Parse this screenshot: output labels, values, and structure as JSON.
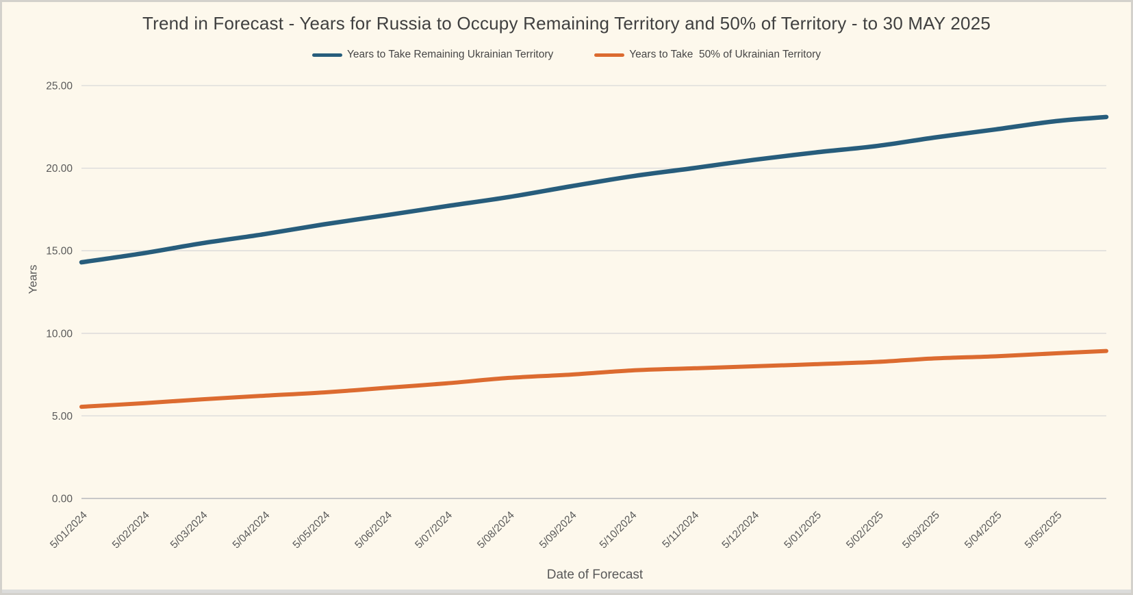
{
  "window": {
    "background_color": "#fdf8ec",
    "border_color": "#d3d1cc",
    "grid_color": "#d9d9d9",
    "axis_line_color": "#c8c8c8",
    "tick_text_color": "#595959",
    "title_text_color": "#404040"
  },
  "chart_data": {
    "type": "line",
    "title": "Trend in Forecast - Years for Russia to Occupy Remaining Territory and 50% of Territory - to 30 MAY 2025",
    "xlabel": "Date of Forecast",
    "ylabel": "Years",
    "ylim": [
      0,
      25
    ],
    "ytick_labels": [
      "0.00",
      "5.00",
      "10.00",
      "15.00",
      "20.00",
      "25.00"
    ],
    "ytick_values": [
      0,
      5,
      10,
      15,
      20,
      25
    ],
    "grid": true,
    "legend_position": "top",
    "x_tick_labels": [
      "5/01/2024",
      "5/02/2024",
      "5/03/2024",
      "5/04/2024",
      "5/05/2024",
      "5/06/2024",
      "5/07/2024",
      "5/08/2024",
      "5/09/2024",
      "5/10/2024",
      "5/11/2024",
      "5/12/2024",
      "5/01/2025",
      "5/02/2025",
      "5/03/2025",
      "5/04/2025",
      "5/05/2025"
    ],
    "x_tick_days": [
      0,
      31,
      60,
      91,
      121,
      152,
      182,
      213,
      244,
      274,
      305,
      335,
      366,
      397,
      425,
      456,
      486
    ],
    "x_end_label": "5/30/2025",
    "x_total_days": 511,
    "series": [
      {
        "name": "Years to Take Remaining Ukrainian Territory",
        "color": "#275d7c",
        "days": [
          0,
          31,
          60,
          91,
          121,
          152,
          182,
          213,
          244,
          274,
          305,
          335,
          366,
          397,
          425,
          456,
          486,
          511
        ],
        "values": [
          14.3,
          14.85,
          15.45,
          16.0,
          16.6,
          17.15,
          17.7,
          18.25,
          18.9,
          19.5,
          20.0,
          20.5,
          20.95,
          21.35,
          21.85,
          22.35,
          22.85,
          23.1
        ]
      },
      {
        "name": "Years to Take  50% of Ukrainian Territory",
        "color": "#dc6b30",
        "days": [
          0,
          31,
          60,
          91,
          121,
          152,
          182,
          213,
          244,
          274,
          305,
          335,
          366,
          397,
          425,
          456,
          486,
          511
        ],
        "values": [
          5.55,
          5.77,
          6.0,
          6.22,
          6.42,
          6.7,
          6.97,
          7.3,
          7.5,
          7.75,
          7.88,
          8.0,
          8.13,
          8.27,
          8.48,
          8.61,
          8.79,
          8.93
        ]
      }
    ]
  }
}
